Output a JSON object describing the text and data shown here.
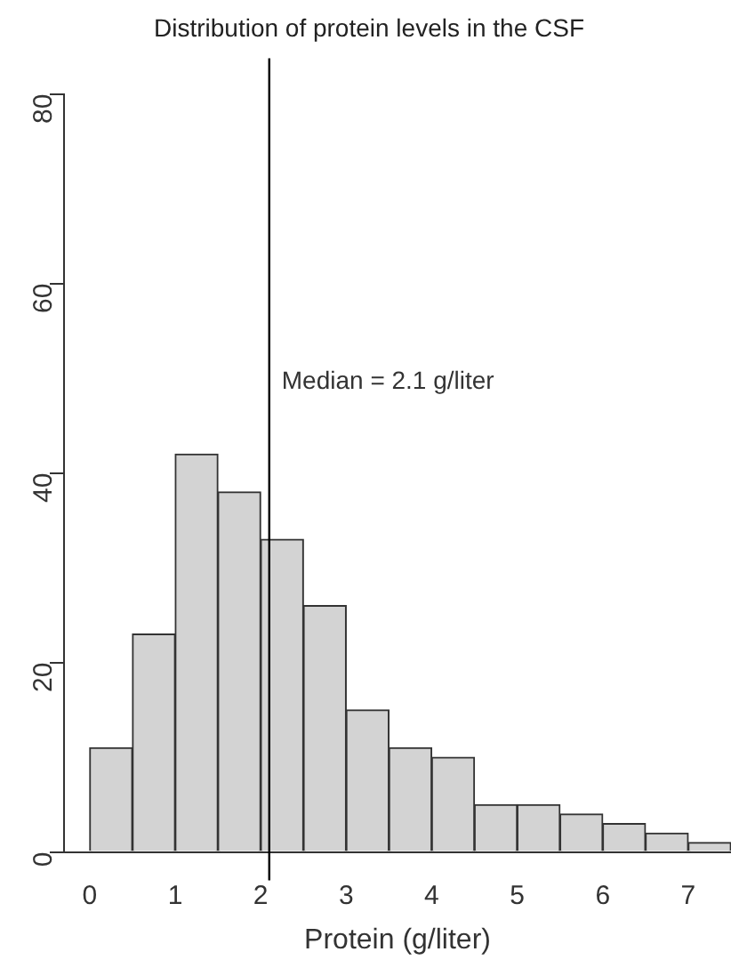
{
  "chart_data": {
    "type": "histogram",
    "title": "Distribution of protein levels in the CSF",
    "xlabel": "Protein (g/liter)",
    "bins": [
      0,
      0.5,
      1,
      1.5,
      2,
      2.5,
      3,
      3.5,
      4,
      4.5,
      5,
      5.5,
      6,
      6.5,
      7,
      7.5
    ],
    "values": [
      11,
      23,
      42,
      38,
      33,
      26,
      15,
      11,
      10,
      5,
      5,
      4,
      3,
      2,
      1
    ],
    "color": "#d3d3d3",
    "xlim": [
      -0.3,
      7.5
    ],
    "xticks": [
      0,
      1,
      2,
      3,
      4,
      5,
      6,
      7
    ],
    "ylim": [
      0,
      80
    ],
    "yticks": [
      0,
      20,
      40,
      60,
      80
    ],
    "grid": false,
    "legend": false,
    "ref_lines": [
      {
        "axis": "x",
        "value": 2.1,
        "label": "Median = 2.1 g/liter",
        "color": "#000000"
      }
    ]
  }
}
